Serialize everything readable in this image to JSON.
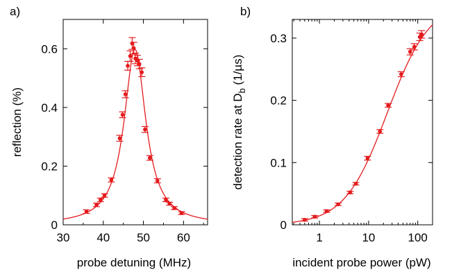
{
  "chart_data": [
    {
      "panel": "a)",
      "type": "scatter",
      "xlabel": "probe detuning (MHz)",
      "ylabel": "reflection (%)",
      "xlim": [
        30,
        66
      ],
      "ylim": [
        0,
        0.7
      ],
      "x_ticks": [
        30,
        40,
        50,
        60
      ],
      "x_tick_labels": [
        "30",
        "40",
        "50",
        "60"
      ],
      "y_ticks": [
        0,
        0.2,
        0.4,
        0.6
      ],
      "y_tick_labels": [
        "0",
        "0.2",
        "0.4",
        "0.6"
      ],
      "grid": false,
      "fit": "Lorentzian",
      "color": "#e41a1c",
      "series": [
        {
          "x": [
            35.8,
            38.3,
            39.3,
            40.3,
            42.0,
            44.1,
            44.8,
            45.5,
            46.1,
            46.7,
            47.2,
            47.6,
            48.0,
            48.5,
            49.0,
            49.6,
            50.4,
            51.6,
            53.5,
            55.6,
            56.5,
            57.7,
            59.5
          ],
          "y": [
            0.045,
            0.068,
            0.085,
            0.1,
            0.153,
            0.295,
            0.375,
            0.445,
            0.542,
            0.575,
            0.618,
            0.602,
            0.567,
            0.56,
            0.548,
            0.52,
            0.325,
            0.228,
            0.15,
            0.085,
            0.072,
            0.057,
            0.04
          ],
          "err": [
            0.006,
            0.006,
            0.006,
            0.006,
            0.007,
            0.01,
            0.01,
            0.012,
            0.015,
            0.018,
            0.02,
            0.02,
            0.018,
            0.018,
            0.016,
            0.015,
            0.01,
            0.008,
            0.007,
            0.006,
            0.005,
            0.005,
            0.005
          ]
        }
      ]
    },
    {
      "panel": "b)",
      "type": "scatter",
      "xlabel": "incident probe power (pW)",
      "ylabel_main": "detection rate at D",
      "ylabel_sub": "b",
      "ylabel_unit": " (1/µs)",
      "xscale": "log",
      "xlim": [
        0.28,
        200
      ],
      "ylim": [
        0,
        0.33
      ],
      "x_ticks": [
        1,
        10,
        100
      ],
      "x_tick_labels": [
        "1",
        "10",
        "100"
      ],
      "y_ticks": [
        0,
        0.1,
        0.2,
        0.3
      ],
      "y_tick_labels": [
        "0",
        "0.1",
        "0.2",
        "0.3"
      ],
      "grid": false,
      "fit": "saturation",
      "color": "#e41a1c",
      "series": [
        {
          "x": [
            0.5,
            0.8,
            1.4,
            2.4,
            4.2,
            5.5,
            9.5,
            17,
            25,
            46,
            70,
            85,
            110,
            120
          ],
          "y": [
            0.008,
            0.013,
            0.022,
            0.033,
            0.052,
            0.066,
            0.107,
            0.15,
            0.192,
            0.242,
            0.278,
            0.286,
            0.302,
            0.306
          ],
          "err": [
            0.002,
            0.002,
            0.002,
            0.002,
            0.002,
            0.002,
            0.003,
            0.003,
            0.003,
            0.004,
            0.005,
            0.005,
            0.006,
            0.006
          ]
        }
      ]
    }
  ]
}
